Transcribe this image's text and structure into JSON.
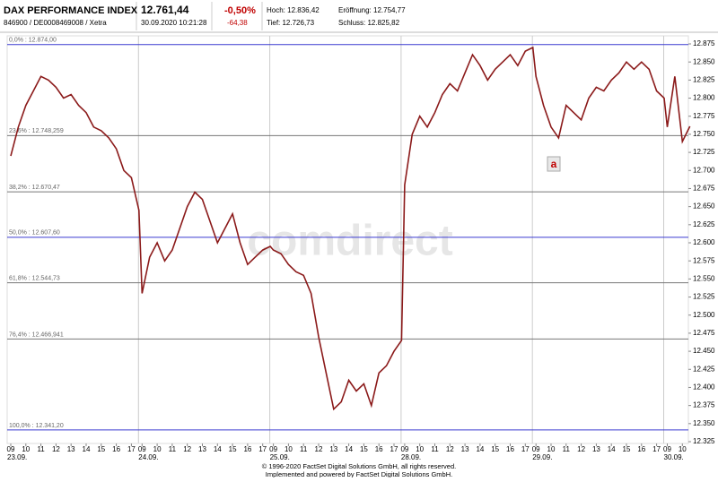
{
  "header": {
    "title": "DAX PERFORMANCE INDEX",
    "ident": "846900 / DE0008469008 / Xetra",
    "price": "12.761,44",
    "datetime": "30.09.2020 10:21:28",
    "change_pct": "-0,50%",
    "change_abs": "-64,38",
    "high": "Hoch: 12.836,42",
    "open": "Eröffnung: 12.754,77",
    "low": "Tief: 12.726,73",
    "close": "Schluss: 12.825,82"
  },
  "chart_data": {
    "type": "line",
    "color": "#8b1a1a",
    "watermark": "comdirect",
    "categories": [
      "09",
      null,
      "10",
      null,
      "11",
      null,
      "12",
      null,
      "13",
      null,
      "14",
      null,
      "15",
      null,
      "16",
      null,
      "17",
      null,
      "09",
      null,
      "10",
      null,
      "11",
      null,
      "12",
      null,
      "13",
      null,
      "14",
      null,
      "15",
      null,
      "16",
      null,
      "17",
      null,
      "09",
      null,
      "10",
      null,
      "11",
      null,
      "12",
      null,
      "13",
      null,
      "14",
      null,
      "15",
      null,
      "16",
      null,
      "17",
      null,
      "09",
      null,
      "10",
      null,
      "11",
      null,
      "12",
      null,
      "13",
      null,
      "14",
      null,
      "15",
      null,
      "16",
      null,
      "17",
      null,
      "09",
      null,
      "10",
      null,
      "11",
      null,
      "12",
      null,
      "13",
      null,
      "14",
      null,
      "15",
      null,
      "16",
      null,
      "17",
      null,
      "09",
      null,
      "10",
      null
    ],
    "dates": [
      "23.09.",
      "24.09.",
      "25.09.",
      "28.09.",
      "29.09.",
      "30.09."
    ],
    "values": [
      12720,
      12760,
      12790,
      12810,
      12830,
      12825,
      12815,
      12800,
      12805,
      12790,
      12780,
      12760,
      12755,
      12745,
      12730,
      12700,
      12690,
      12645,
      12530,
      12580,
      12600,
      12575,
      12590,
      12620,
      12650,
      12670,
      12660,
      12630,
      12600,
      12620,
      12640,
      12600,
      12570,
      12580,
      12590,
      12595,
      12590,
      12585,
      12570,
      12560,
      12555,
      12530,
      12470,
      12420,
      12370,
      12380,
      12410,
      12395,
      12405,
      12375,
      12420,
      12430,
      12450,
      12465,
      12680,
      12750,
      12775,
      12760,
      12780,
      12805,
      12820,
      12810,
      12835,
      12860,
      12845,
      12825,
      12840,
      12850,
      12860,
      12845,
      12865,
      12870,
      12830,
      12790,
      12760,
      12745,
      12790,
      12780,
      12770,
      12800,
      12815,
      12810,
      12825,
      12835,
      12850,
      12840,
      12850,
      12840,
      12810,
      12800,
      12760,
      12830,
      12740,
      12761
    ],
    "levels": [
      {
        "label": "0,0% : 12.874,00",
        "value": 12874.0,
        "color": "#3a3ad0"
      },
      {
        "label": "23,6% : 12.748,259",
        "value": 12748.259,
        "color": "#777777"
      },
      {
        "label": "38,2% : 12.670,47",
        "value": 12670.47,
        "color": "#777777"
      },
      {
        "label": "50,0% : 12.607,60",
        "value": 12607.6,
        "color": "#3a3ad0"
      },
      {
        "label": "61,8% : 12.544,73",
        "value": 12544.73,
        "color": "#777777"
      },
      {
        "label": "76,4% : 12.466,941",
        "value": 12466.941,
        "color": "#777777"
      },
      {
        "label": "100,0% : 12.341,20",
        "value": 12341.2,
        "color": "#3a3ad0"
      }
    ],
    "annotation": "a",
    "ylim": [
      12325,
      12875
    ],
    "yticks": [
      {
        "value": 12325,
        "label": "12.325"
      },
      {
        "value": 12350,
        "label": "12.350"
      },
      {
        "value": 12375,
        "label": "12.375"
      },
      {
        "value": 12400,
        "label": "12.400"
      },
      {
        "value": 12425,
        "label": "12.425"
      },
      {
        "value": 12450,
        "label": "12.450"
      },
      {
        "value": 12475,
        "label": "12.475"
      },
      {
        "value": 12500,
        "label": "12.500"
      },
      {
        "value": 12525,
        "label": "12.525"
      },
      {
        "value": 12550,
        "label": "12.550"
      },
      {
        "value": 12575,
        "label": "12.575"
      },
      {
        "value": 12600,
        "label": "12.600"
      },
      {
        "value": 12625,
        "label": "12.625"
      },
      {
        "value": 12650,
        "label": "12.650"
      },
      {
        "value": 12675,
        "label": "12.675"
      },
      {
        "value": 12700,
        "label": "12.700"
      },
      {
        "value": 12725,
        "label": "12.725"
      },
      {
        "value": 12750,
        "label": "12.750"
      },
      {
        "value": 12775,
        "label": "12.775"
      },
      {
        "value": 12800,
        "label": "12.800"
      },
      {
        "value": 12825,
        "label": "12.825"
      },
      {
        "value": 12850,
        "label": "12.850"
      },
      {
        "value": 12875,
        "label": "12.875"
      }
    ],
    "footer": [
      "© 1996-2020 FactSet Digital Solutions GmbH, all rights reserved.",
      "Implemented and powered by FactSet Digital Solutions GmbH."
    ]
  }
}
